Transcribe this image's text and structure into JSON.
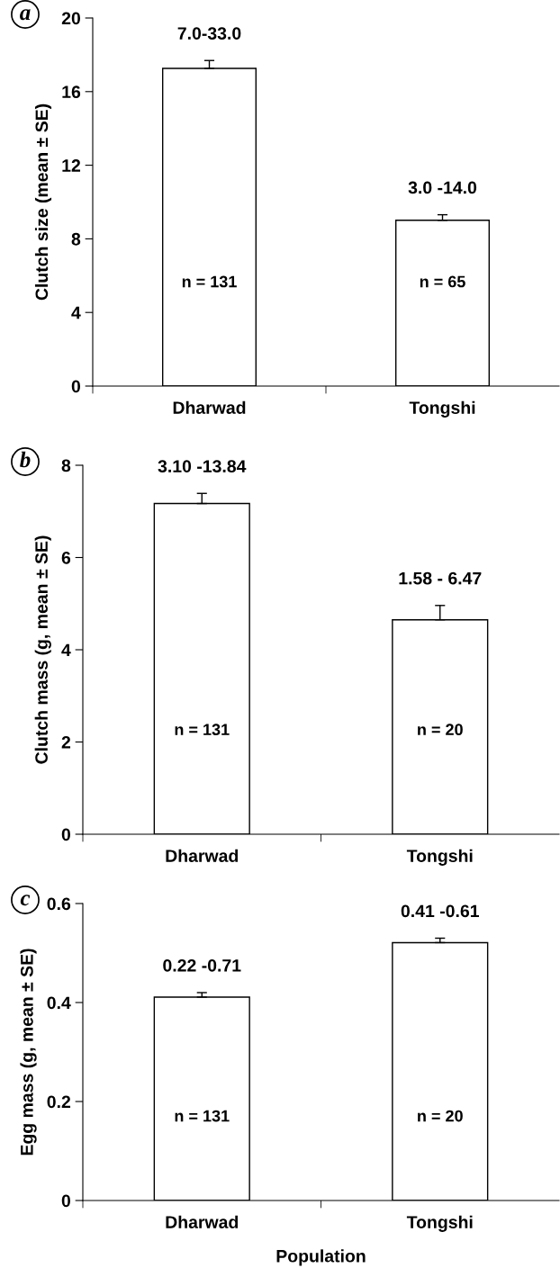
{
  "chart_data": [
    {
      "type": "bar",
      "ylabel": "Clutch size (mean ± SE)",
      "categories": [
        "Dharwad",
        "Tongshi"
      ],
      "values": [
        17.26,
        9.01
      ],
      "errors": [
        0.43,
        0.3
      ],
      "color": "#ffffff",
      "ylim": [
        0,
        20
      ],
      "yticks": [
        0,
        4,
        8,
        12,
        16,
        20
      ],
      "grid": false,
      "legend": false,
      "annotations": [
        "a",
        "7.0-33.0",
        "3.0 -14.0",
        "n = 131",
        "n = 65"
      ]
    },
    {
      "type": "bar",
      "ylabel": "Clutch mass (g, mean ± SE)",
      "categories": [
        "Dharwad",
        "Tongshi"
      ],
      "values": [
        7.17,
        4.65
      ],
      "errors": [
        0.22,
        0.31
      ],
      "color": "#ffffff",
      "ylim": [
        0,
        8
      ],
      "yticks": [
        0,
        2,
        4,
        6,
        8
      ],
      "grid": false,
      "legend": false,
      "annotations": [
        "b",
        "3.10 -13.84",
        "1.58 - 6.47",
        "n = 131",
        "n = 20"
      ]
    },
    {
      "type": "bar",
      "ylabel": "Egg mass (g, mean ± SE)",
      "xlabel": "Population",
      "categories": [
        "Dharwad",
        "Tongshi"
      ],
      "values": [
        0.411,
        0.521
      ],
      "errors": [
        0.009,
        0.009
      ],
      "color": "#ffffff",
      "ylim": [
        0,
        0.6
      ],
      "yticks": [
        0,
        0.2,
        0.4,
        0.6
      ],
      "grid": false,
      "legend": false,
      "annotations": [
        "c",
        "0.22 -0.71",
        "0.41 -0.61",
        "n = 131",
        "n = 20"
      ]
    }
  ]
}
